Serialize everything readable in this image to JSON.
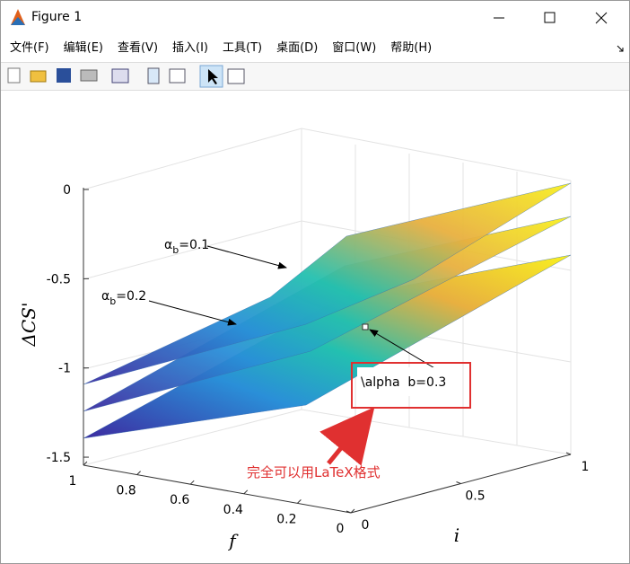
{
  "window": {
    "title": "Figure 1",
    "menu": [
      "文件(F)",
      "编辑(E)",
      "查看(V)",
      "插入(I)",
      "工具(T)",
      "桌面(D)",
      "窗口(W)",
      "帮助(H)"
    ]
  },
  "axes": {
    "zlabel": "ΔCS'",
    "xlabel": "f",
    "ylabel": "i",
    "zticks": [
      0,
      -0.5,
      -1,
      -1.5
    ],
    "fticks": [
      1,
      0.8,
      0.6,
      0.4,
      0.2,
      0
    ],
    "iticks": [
      0,
      0.5,
      1
    ]
  },
  "annotations": [
    {
      "symbol": "α",
      "subscript": "b",
      "text": "=0.1"
    },
    {
      "symbol": "α",
      "subscript": "b",
      "text": "=0.2"
    }
  ],
  "datatip": "\\alpha  b=0.3",
  "note": "完全可以用LaTeX格式"
}
